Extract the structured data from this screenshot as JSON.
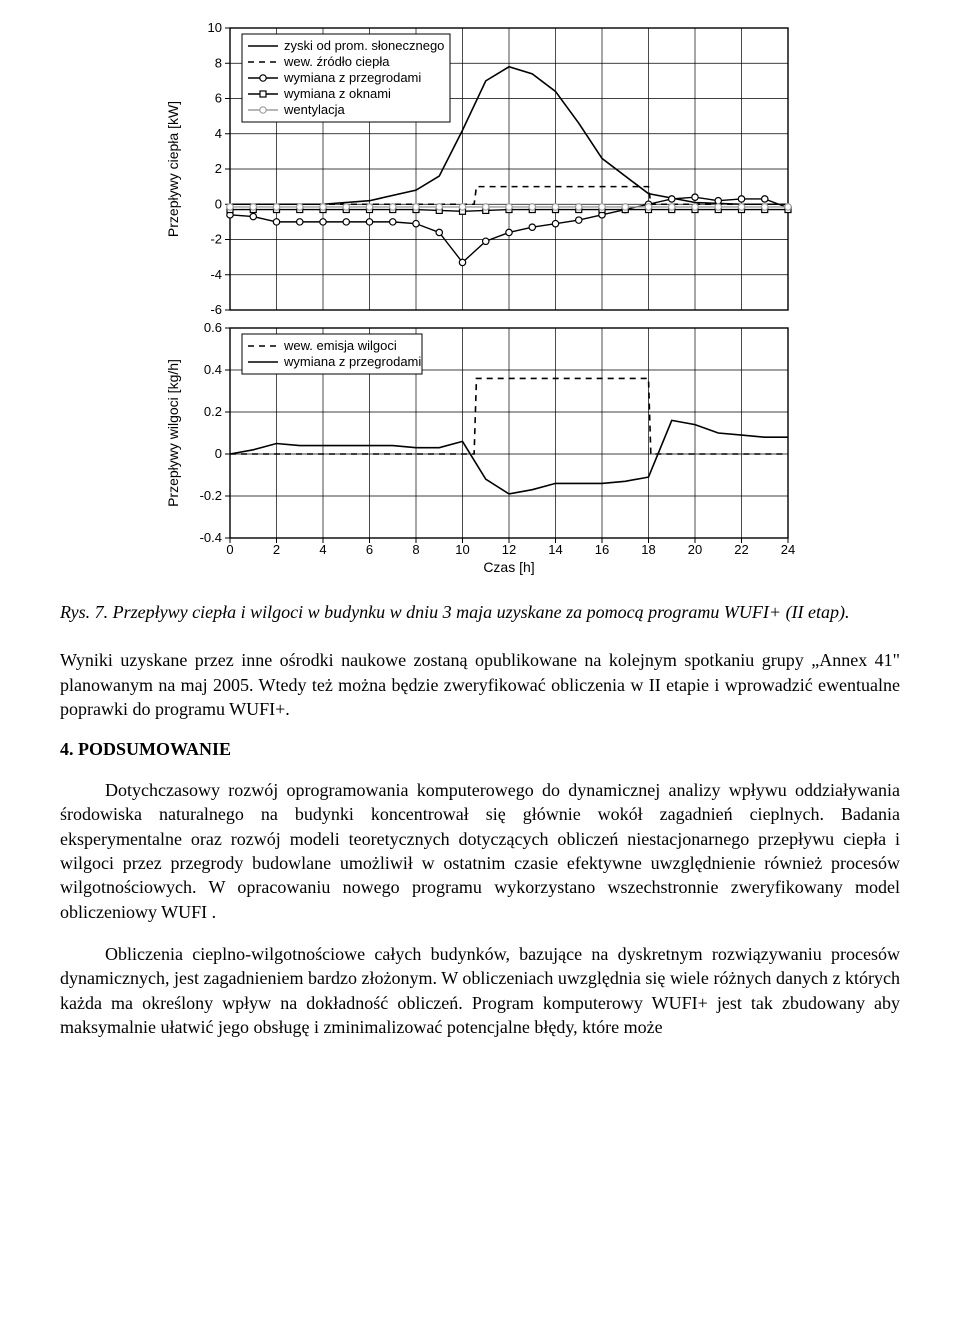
{
  "chart_top": {
    "type": "line",
    "ylabel": "Przepływy ciepła [kW]",
    "x": {
      "min": 0,
      "max": 24,
      "step": 2
    },
    "y": {
      "min": -6,
      "max": 10,
      "step": 2
    },
    "grid_color": "#000000",
    "background_color": "#ffffff",
    "legend_box": true,
    "legend": [
      {
        "label": "zyski od prom. słonecznego",
        "style": "solid",
        "marker": "none"
      },
      {
        "label": "wew. źródło ciepła",
        "style": "dashed",
        "marker": "none"
      },
      {
        "label": "wymiana z przegrodami",
        "style": "solid",
        "marker": "circle"
      },
      {
        "label": "wymiana z oknami",
        "style": "solid",
        "marker": "square"
      },
      {
        "label": "wentylacja",
        "style": "solid",
        "marker": "circle_gray"
      }
    ],
    "series": {
      "zyski": {
        "color": "#000000",
        "width": 1.6,
        "x": [
          0,
          2,
          4,
          6,
          8,
          9,
          10,
          11,
          12,
          13,
          14,
          15,
          16,
          18,
          20,
          22,
          24
        ],
        "y": [
          0,
          0,
          0,
          0.2,
          0.8,
          1.6,
          4.2,
          7.0,
          7.8,
          7.4,
          6.4,
          4.6,
          2.6,
          0.6,
          0.1,
          0,
          0
        ]
      },
      "zrodlo": {
        "color": "#000000",
        "width": 1.6,
        "dash": "6,5",
        "x": [
          0,
          10.5,
          10.6,
          18,
          18.1,
          24
        ],
        "y": [
          0,
          0,
          1.0,
          1.0,
          0,
          0
        ]
      },
      "przegrody": {
        "color": "#000000",
        "width": 1.4,
        "marker": "circle",
        "x": [
          0,
          1,
          2,
          3,
          4,
          5,
          6,
          7,
          8,
          9,
          10,
          11,
          12,
          13,
          14,
          15,
          16,
          17,
          18,
          19,
          20,
          21,
          22,
          23,
          24
        ],
        "y": [
          -0.6,
          -0.7,
          -1.0,
          -1.0,
          -1.0,
          -1.0,
          -1.0,
          -1.0,
          -1.1,
          -1.6,
          -3.3,
          -2.1,
          -1.6,
          -1.3,
          -1.1,
          -0.9,
          -0.6,
          -0.3,
          0.0,
          0.3,
          0.4,
          0.2,
          0.3,
          0.3,
          -0.2
        ]
      },
      "okna": {
        "color": "#000000",
        "width": 1.4,
        "marker": "square",
        "x": [
          0,
          1,
          2,
          3,
          4,
          5,
          6,
          7,
          8,
          9,
          10,
          11,
          12,
          13,
          14,
          15,
          16,
          17,
          18,
          19,
          20,
          21,
          22,
          23,
          24
        ],
        "y": [
          -0.3,
          -0.3,
          -0.3,
          -0.3,
          -0.3,
          -0.3,
          -0.3,
          -0.3,
          -0.3,
          -0.35,
          -0.4,
          -0.35,
          -0.3,
          -0.3,
          -0.3,
          -0.3,
          -0.3,
          -0.3,
          -0.3,
          -0.3,
          -0.3,
          -0.3,
          -0.3,
          -0.3,
          -0.3
        ]
      },
      "wentylacja": {
        "color": "#9e9e9e",
        "width": 1.4,
        "marker": "circle_gray",
        "x": [
          0,
          1,
          2,
          3,
          4,
          5,
          6,
          7,
          8,
          9,
          10,
          11,
          12,
          13,
          14,
          15,
          16,
          17,
          18,
          19,
          20,
          21,
          22,
          23,
          24
        ],
        "y": [
          -0.15,
          -0.15,
          -0.15,
          -0.15,
          -0.15,
          -0.15,
          -0.15,
          -0.15,
          -0.15,
          -0.15,
          -0.15,
          -0.15,
          -0.15,
          -0.15,
          -0.15,
          -0.15,
          -0.15,
          -0.15,
          -0.15,
          -0.15,
          -0.15,
          -0.15,
          -0.15,
          -0.15,
          -0.15
        ]
      }
    }
  },
  "chart_bottom": {
    "type": "line",
    "ylabel": "Przepływy wilgoci [kg/h]",
    "xlabel": "Czas [h]",
    "x": {
      "min": 0,
      "max": 24,
      "step": 2
    },
    "y": {
      "min": -0.4,
      "max": 0.6,
      "step": 0.2
    },
    "grid_color": "#000000",
    "background_color": "#ffffff",
    "legend_box": true,
    "legend": [
      {
        "label": "wew. emisja wilgoci",
        "style": "dashed",
        "marker": "none"
      },
      {
        "label": "wymiana z przegrodami",
        "style": "solid",
        "marker": "none"
      }
    ],
    "series": {
      "emisja": {
        "color": "#000000",
        "width": 1.6,
        "dash": "6,5",
        "x": [
          0,
          10.5,
          10.6,
          18,
          18.1,
          24
        ],
        "y": [
          0,
          0,
          0.36,
          0.36,
          0,
          0
        ]
      },
      "przegrody": {
        "color": "#000000",
        "width": 1.6,
        "x": [
          0,
          1,
          2,
          3,
          4,
          5,
          6,
          7,
          8,
          9,
          10,
          11,
          12,
          13,
          14,
          15,
          16,
          17,
          18,
          19,
          20,
          21,
          22,
          23,
          24
        ],
        "y": [
          0.0,
          0.02,
          0.05,
          0.04,
          0.04,
          0.04,
          0.04,
          0.04,
          0.03,
          0.03,
          0.06,
          -0.12,
          -0.19,
          -0.17,
          -0.14,
          -0.14,
          -0.14,
          -0.13,
          -0.11,
          0.16,
          0.14,
          0.1,
          0.09,
          0.08,
          0.08
        ]
      }
    }
  },
  "caption_prefix": "Rys. 7. ",
  "caption_text": "Przepływy ciepła i wilgoci w budynku w dniu 3 maja uzyskane za pomocą programu WUFI+ (II etap).",
  "para1": "Wyniki uzyskane przez inne ośrodki naukowe zostaną opublikowane na kolejnym spotkaniu grupy „Annex 41\" planowanym na maj 2005. Wtedy też można będzie zweryfikować obliczenia w II etapie i wprowadzić ewentualne poprawki do programu WUFI+.",
  "section_title": "4. PODSUMOWANIE",
  "para2": "Dotychczasowy rozwój oprogramowania komputerowego do dynamicznej analizy wpływu oddziaływania środowiska naturalnego na budynki koncentrował się głównie wokół zagadnień cieplnych. Badania eksperymentalne oraz rozwój modeli teoretycznych dotyczących obliczeń niestacjonarnego przepływu ciepła i wilgoci przez przegrody budowlane umożliwił w ostatnim czasie efektywne uwzględnienie również procesów wilgotnościowych. W opracowaniu nowego programu wykorzystano wszechstronnie zweryfikowany model obliczeniowy WUFI .",
  "para3": "Obliczenia cieplno-wilgotnościowe całych budynków, bazujące na dyskretnym rozwiązywaniu procesów dynamicznych, jest zagadnieniem bardzo złożonym. W obliczeniach uwzględnia się wiele różnych danych z których każda ma określony wpływ na dokładność obliczeń. Program komputerowy WUFI+ jest tak zbudowany aby maksymalnie ułatwić jego obsługę i zminimalizować potencjalne błędy, które może"
}
